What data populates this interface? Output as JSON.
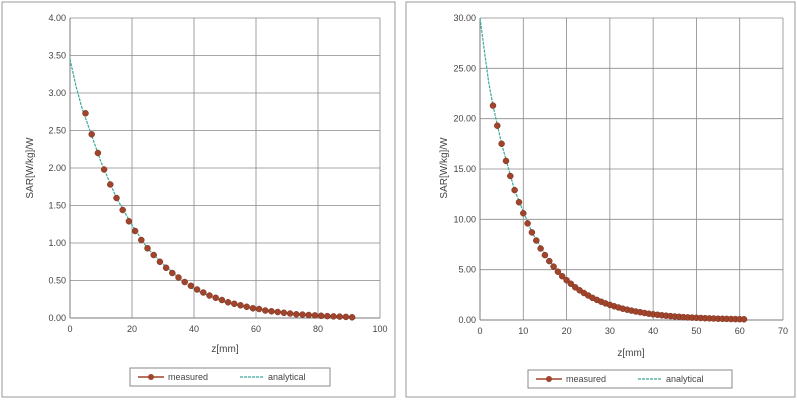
{
  "colors": {
    "measured": "#a0442c",
    "analytical": "#3aa99a",
    "grid": "#8a8a8a"
  },
  "chart_data": [
    {
      "type": "scatter",
      "xlabel": "z[mm]",
      "ylabel": "SAR[W/kg]/W",
      "xlim": [
        0,
        100
      ],
      "ylim": [
        0,
        4
      ],
      "x_ticks": [
        "0",
        "20",
        "40",
        "60",
        "80",
        "100"
      ],
      "y_ticks": [
        "0.00",
        "0.50",
        "1.00",
        "1.50",
        "2.00",
        "2.50",
        "3.00",
        "3.50",
        "4.00"
      ],
      "grid": true,
      "legend": "bottom",
      "series": [
        {
          "name": "measured",
          "style": "markers",
          "x": [
            5,
            7,
            9,
            11,
            13,
            15,
            17,
            19,
            21,
            23,
            25,
            27,
            29,
            31,
            33,
            35,
            37,
            39,
            41,
            43,
            45,
            47,
            49,
            51,
            53,
            55,
            57,
            59,
            61,
            63,
            65,
            67,
            69,
            71,
            73,
            75,
            77,
            79,
            81,
            83,
            85,
            87,
            89,
            91
          ],
          "y": [
            2.73,
            2.45,
            2.2,
            1.98,
            1.78,
            1.6,
            1.44,
            1.29,
            1.16,
            1.04,
            0.93,
            0.84,
            0.75,
            0.67,
            0.6,
            0.54,
            0.48,
            0.43,
            0.38,
            0.34,
            0.3,
            0.27,
            0.24,
            0.21,
            0.19,
            0.17,
            0.15,
            0.13,
            0.12,
            0.1,
            0.09,
            0.08,
            0.07,
            0.06,
            0.05,
            0.045,
            0.04,
            0.035,
            0.03,
            0.026,
            0.022,
            0.018,
            0.014,
            0.01
          ]
        },
        {
          "name": "analytical",
          "style": "line",
          "x": [
            0,
            2,
            4,
            6,
            10,
            15,
            20,
            25,
            30,
            35,
            40,
            50,
            60,
            70,
            80,
            90
          ],
          "y": [
            3.45,
            3.08,
            2.78,
            2.55,
            2.08,
            1.6,
            1.24,
            0.93,
            0.72,
            0.54,
            0.38,
            0.21,
            0.12,
            0.07,
            0.03,
            0.01
          ]
        }
      ]
    },
    {
      "type": "scatter",
      "xlabel": "z[mm]",
      "ylabel": "SAR[W/kg]/W",
      "xlim": [
        0,
        70
      ],
      "ylim": [
        0,
        30
      ],
      "x_ticks": [
        "0",
        "10",
        "20",
        "30",
        "40",
        "50",
        "60",
        "70"
      ],
      "y_ticks": [
        "0.00",
        "5.00",
        "10.00",
        "15.00",
        "20.00",
        "25.00",
        "30.00"
      ],
      "grid": true,
      "legend": "bottom",
      "series": [
        {
          "name": "measured",
          "style": "markers",
          "x": [
            3,
            4,
            5,
            6,
            7,
            8,
            9,
            10,
            11,
            12,
            13,
            14,
            15,
            16,
            17,
            18,
            19,
            20,
            21,
            22,
            23,
            24,
            25,
            26,
            27,
            28,
            29,
            30,
            31,
            32,
            33,
            34,
            35,
            36,
            37,
            38,
            39,
            40,
            41,
            42,
            43,
            44,
            45,
            46,
            47,
            48,
            49,
            50,
            51,
            52,
            53,
            54,
            55,
            56,
            57,
            58,
            59,
            60,
            61
          ],
          "y": [
            21.3,
            19.3,
            17.5,
            15.8,
            14.3,
            12.9,
            11.7,
            10.6,
            9.6,
            8.7,
            7.9,
            7.1,
            6.45,
            5.85,
            5.3,
            4.8,
            4.35,
            3.95,
            3.6,
            3.25,
            2.95,
            2.68,
            2.43,
            2.2,
            2.0,
            1.82,
            1.65,
            1.5,
            1.36,
            1.24,
            1.12,
            1.02,
            0.93,
            0.84,
            0.77,
            0.7,
            0.63,
            0.57,
            0.52,
            0.47,
            0.43,
            0.39,
            0.35,
            0.32,
            0.29,
            0.26,
            0.24,
            0.22,
            0.2,
            0.18,
            0.16,
            0.15,
            0.13,
            0.12,
            0.11,
            0.1,
            0.09,
            0.08,
            0.07
          ]
        },
        {
          "name": "analytical",
          "style": "line",
          "x": [
            0,
            1,
            2,
            3,
            5,
            8,
            12,
            16,
            20,
            25,
            30,
            40,
            50,
            60
          ],
          "y": [
            30,
            26.8,
            23.6,
            21.3,
            17.5,
            12.9,
            8.7,
            5.85,
            3.95,
            2.43,
            1.5,
            0.57,
            0.22,
            0.08
          ]
        }
      ]
    }
  ]
}
